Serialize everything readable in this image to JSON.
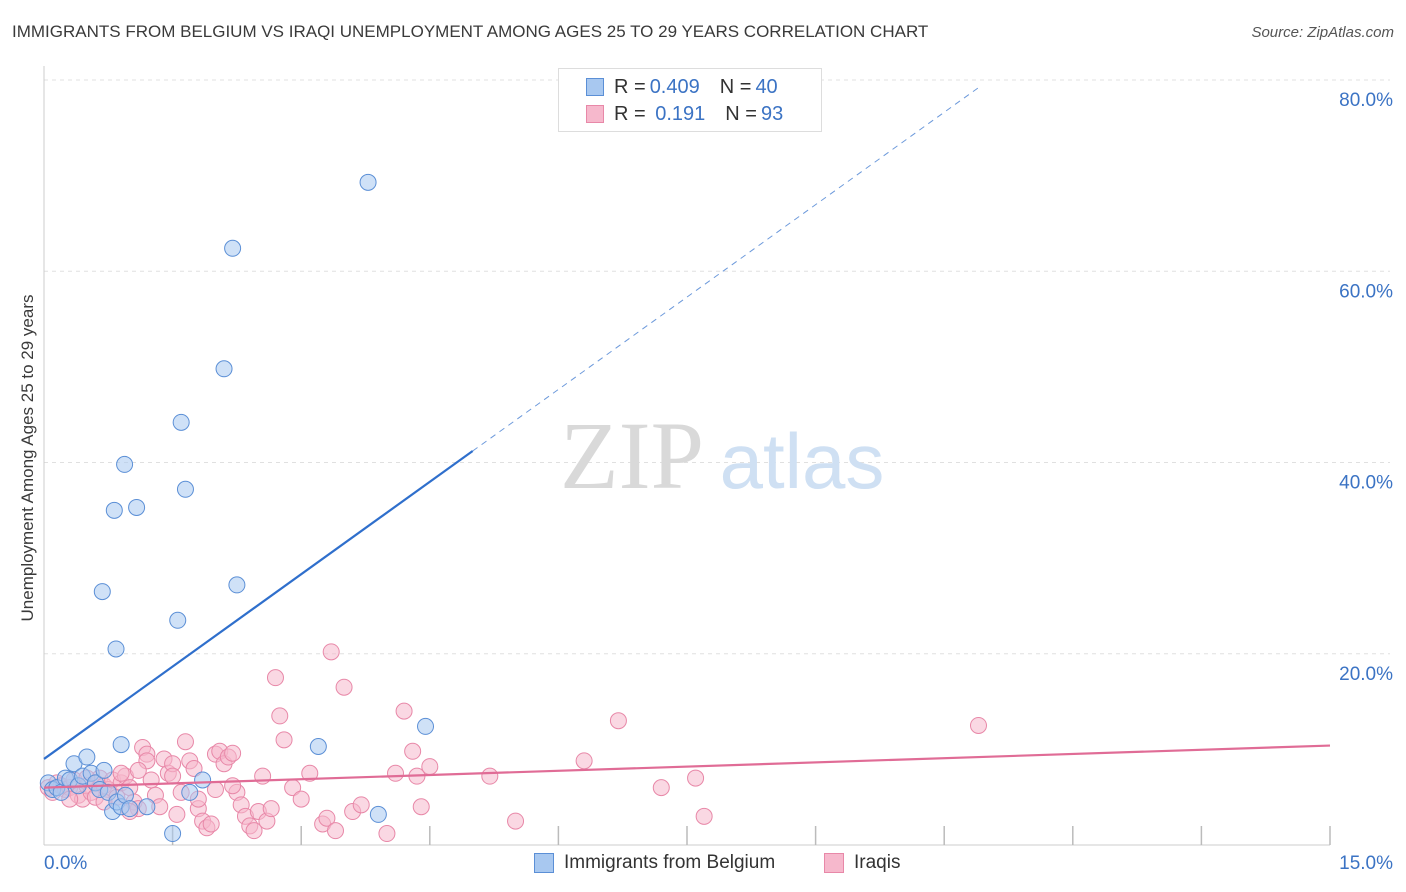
{
  "title": "IMMIGRANTS FROM BELGIUM VS IRAQI UNEMPLOYMENT AMONG AGES 25 TO 29 YEARS CORRELATION CHART",
  "source": "Source: ZipAtlas.com",
  "watermark": {
    "zip": "ZIP",
    "atlas": "atlas"
  },
  "colors": {
    "blue_fill": "#a8c8f0",
    "blue_stroke": "#5b8fd6",
    "blue_line": "#2f6fcc",
    "pink_fill": "#f6b8cc",
    "pink_stroke": "#e888a8",
    "pink_line": "#e06c96",
    "accent_text": "#3b73c4",
    "grid": "#e0e0e0"
  },
  "stats": [
    {
      "swatch": "blue",
      "r_label": "R = ",
      "r_value": "0.409",
      "n_label": "N = ",
      "n_value": "40"
    },
    {
      "swatch": "pink",
      "r_label": "R = ",
      "r_value": " 0.191",
      "n_label": "N = ",
      "n_value": "93"
    }
  ],
  "legend": [
    {
      "swatch": "blue",
      "label": "Immigrants from Belgium"
    },
    {
      "swatch": "pink",
      "label": "Iraqis"
    }
  ],
  "chart_data": {
    "type": "scatter",
    "title": "IMMIGRANTS FROM BELGIUM VS IRAQI UNEMPLOYMENT AMONG AGES 25 TO 29 YEARS CORRELATION CHART",
    "xlabel": "",
    "ylabel": "Unemployment Among Ages 25 to 29 years",
    "xlim": [
      0,
      15
    ],
    "ylim": [
      0,
      80
    ],
    "x_tick_labels": [
      {
        "value": 0,
        "label": "0.0%"
      },
      {
        "value": 15,
        "label": "15.0%"
      }
    ],
    "y_tick_labels": [
      {
        "value": 20,
        "label": "20.0%"
      },
      {
        "value": 40,
        "label": "40.0%"
      },
      {
        "value": 60,
        "label": "60.0%"
      },
      {
        "value": 80,
        "label": "80.0%"
      }
    ],
    "x_minor_ticks": [
      1.5,
      3.0,
      4.5,
      6.0,
      7.5,
      9.0,
      10.5,
      12.0,
      13.5,
      15.0
    ],
    "grid": true,
    "series": [
      {
        "name": "Immigrants from Belgium",
        "color": "blue",
        "points": [
          [
            0.05,
            6.5
          ],
          [
            0.1,
            5.8
          ],
          [
            0.15,
            6.0
          ],
          [
            0.2,
            5.5
          ],
          [
            0.25,
            7.0
          ],
          [
            0.3,
            6.8
          ],
          [
            0.35,
            8.5
          ],
          [
            0.4,
            6.2
          ],
          [
            0.45,
            7.2
          ],
          [
            0.5,
            9.2
          ],
          [
            0.55,
            7.5
          ],
          [
            0.6,
            6.5
          ],
          [
            0.65,
            5.8
          ],
          [
            0.7,
            7.8
          ],
          [
            0.75,
            5.5
          ],
          [
            0.8,
            3.5
          ],
          [
            0.85,
            4.5
          ],
          [
            0.9,
            4.0
          ],
          [
            0.95,
            5.2
          ],
          [
            1.0,
            3.8
          ],
          [
            0.68,
            26.5
          ],
          [
            0.84,
            20.5
          ],
          [
            0.82,
            35.0
          ],
          [
            0.94,
            39.8
          ],
          [
            1.08,
            35.3
          ],
          [
            1.56,
            23.5
          ],
          [
            1.6,
            44.2
          ],
          [
            1.65,
            37.2
          ],
          [
            2.1,
            49.8
          ],
          [
            2.2,
            62.4
          ],
          [
            2.25,
            27.2
          ],
          [
            3.78,
            69.3
          ],
          [
            0.9,
            10.5
          ],
          [
            1.5,
            1.2
          ],
          [
            1.7,
            5.5
          ],
          [
            1.85,
            6.8
          ],
          [
            3.2,
            10.3
          ],
          [
            3.9,
            3.2
          ],
          [
            4.45,
            12.4
          ],
          [
            1.2,
            4.0
          ]
        ],
        "trend": {
          "x1": 0.0,
          "y1": 9.0,
          "x2": 5.0,
          "y2": 41.2,
          "dash_x2": 10.9,
          "dash_y2": 79.2
        }
      },
      {
        "name": "Iraqis",
        "color": "pink",
        "points": [
          [
            0.05,
            6.0
          ],
          [
            0.1,
            5.5
          ],
          [
            0.15,
            6.5
          ],
          [
            0.2,
            6.2
          ],
          [
            0.25,
            5.8
          ],
          [
            0.3,
            6.0
          ],
          [
            0.35,
            6.8
          ],
          [
            0.4,
            5.2
          ],
          [
            0.45,
            4.8
          ],
          [
            0.5,
            6.2
          ],
          [
            0.55,
            5.5
          ],
          [
            0.6,
            6.5
          ],
          [
            0.65,
            7.0
          ],
          [
            0.7,
            6.2
          ],
          [
            0.75,
            5.8
          ],
          [
            0.8,
            6.8
          ],
          [
            0.85,
            5.0
          ],
          [
            0.9,
            6.5
          ],
          [
            0.95,
            7.2
          ],
          [
            1.0,
            6.0
          ],
          [
            1.05,
            4.5
          ],
          [
            1.1,
            3.8
          ],
          [
            1.15,
            10.2
          ],
          [
            1.2,
            9.5
          ],
          [
            1.25,
            6.8
          ],
          [
            1.3,
            5.2
          ],
          [
            1.35,
            4.0
          ],
          [
            1.4,
            9.0
          ],
          [
            1.45,
            7.5
          ],
          [
            1.5,
            8.5
          ],
          [
            1.55,
            3.2
          ],
          [
            1.6,
            5.5
          ],
          [
            1.65,
            10.8
          ],
          [
            1.7,
            8.8
          ],
          [
            1.75,
            8.0
          ],
          [
            1.8,
            3.8
          ],
          [
            1.85,
            2.5
          ],
          [
            1.9,
            1.8
          ],
          [
            1.95,
            2.2
          ],
          [
            2.0,
            9.5
          ],
          [
            2.05,
            9.8
          ],
          [
            2.1,
            8.5
          ],
          [
            2.15,
            9.2
          ],
          [
            2.2,
            9.6
          ],
          [
            2.25,
            5.5
          ],
          [
            2.3,
            4.2
          ],
          [
            2.35,
            3.0
          ],
          [
            2.4,
            2.0
          ],
          [
            2.45,
            1.5
          ],
          [
            2.5,
            3.5
          ],
          [
            2.55,
            7.2
          ],
          [
            2.6,
            2.5
          ],
          [
            2.65,
            3.8
          ],
          [
            2.7,
            17.5
          ],
          [
            2.75,
            13.5
          ],
          [
            2.8,
            11.0
          ],
          [
            2.9,
            6.0
          ],
          [
            3.0,
            4.8
          ],
          [
            3.1,
            7.5
          ],
          [
            3.25,
            2.2
          ],
          [
            3.3,
            2.8
          ],
          [
            3.35,
            20.2
          ],
          [
            3.4,
            1.5
          ],
          [
            3.5,
            16.5
          ],
          [
            3.6,
            3.5
          ],
          [
            3.7,
            4.2
          ],
          [
            4.0,
            1.2
          ],
          [
            4.1,
            7.5
          ],
          [
            4.2,
            14.0
          ],
          [
            4.3,
            9.8
          ],
          [
            4.35,
            7.2
          ],
          [
            4.4,
            4.0
          ],
          [
            4.5,
            8.2
          ],
          [
            5.2,
            7.2
          ],
          [
            5.5,
            2.5
          ],
          [
            6.3,
            8.8
          ],
          [
            6.7,
            13.0
          ],
          [
            7.2,
            6.0
          ],
          [
            7.6,
            7.0
          ],
          [
            7.7,
            3.0
          ],
          [
            10.9,
            12.5
          ],
          [
            0.6,
            5.0
          ],
          [
            0.7,
            4.5
          ],
          [
            1.0,
            3.5
          ],
          [
            1.2,
            8.8
          ],
          [
            1.5,
            7.2
          ],
          [
            1.8,
            4.8
          ],
          [
            2.0,
            5.8
          ],
          [
            2.2,
            6.2
          ],
          [
            0.3,
            4.8
          ],
          [
            0.5,
            7.0
          ],
          [
            0.9,
            7.5
          ],
          [
            1.1,
            7.8
          ]
        ],
        "trend": {
          "x1": 0.0,
          "y1": 6.0,
          "x2": 15.0,
          "y2": 10.4
        }
      }
    ]
  }
}
